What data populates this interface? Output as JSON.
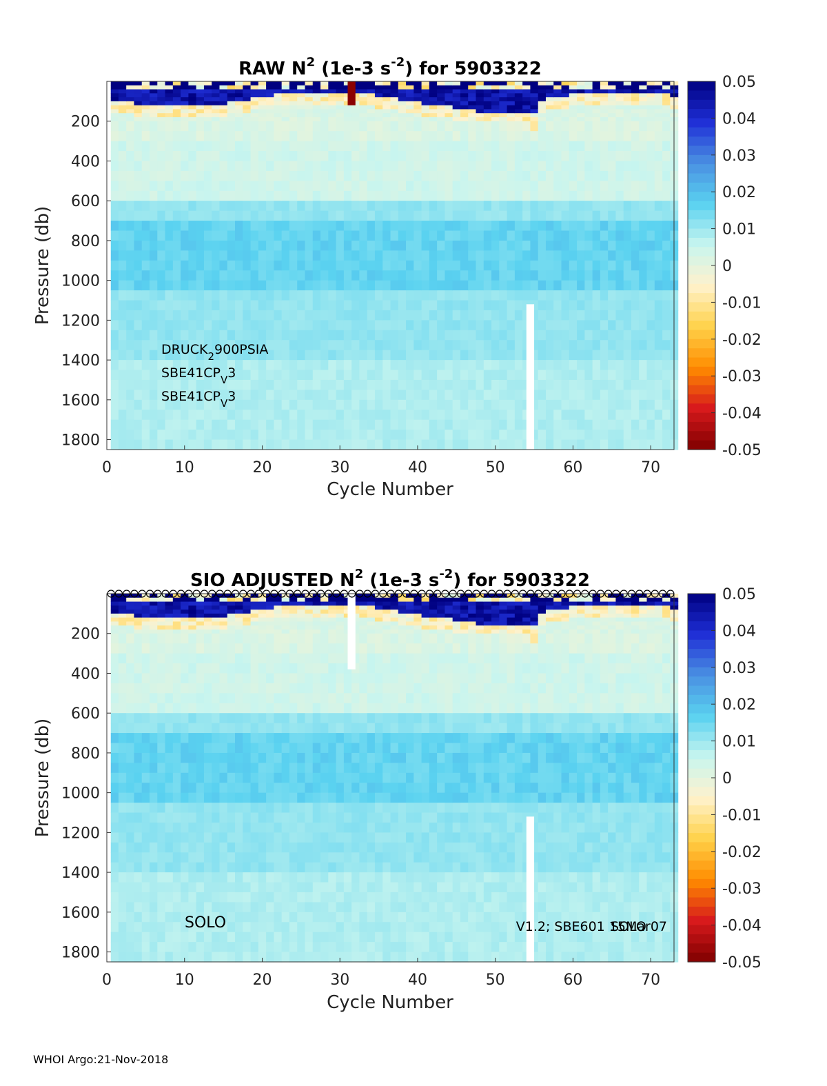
{
  "footer": "WHOI Argo:21-Nov-2018",
  "colormap": {
    "stops": [
      "#7f0000",
      "#d7191c",
      "#ff8c00",
      "#ffd24a",
      "#fff2cc",
      "#c8f5ef",
      "#5ad2f0",
      "#4a90e2",
      "#1f2fd6",
      "#000080"
    ],
    "range": [
      -0.05,
      0.05
    ]
  },
  "chart_data": [
    {
      "type": "heatmap",
      "title": {
        "pre": "RAW N",
        "sup1": "2",
        "mid": " (1e-3 s",
        "sup2": "-2",
        "post": ") for 5903322"
      },
      "xlabel": "Cycle Number",
      "ylabel": "Pressure (db)",
      "xlim": [
        0,
        73
      ],
      "ylim": [
        1850,
        0
      ],
      "xticks": [
        "0",
        "10",
        "20",
        "30",
        "40",
        "50",
        "60",
        "70"
      ],
      "yticks": [
        "200",
        "400",
        "600",
        "800",
        "1000",
        "1200",
        "1400",
        "1600",
        "1800"
      ],
      "colorbar_ticks": [
        "0.05",
        "0.04",
        "0.03",
        "0.02",
        "0.01",
        "0",
        "-0.01",
        "-0.02",
        "-0.03",
        "-0.04",
        "-0.05"
      ],
      "annotations": {
        "sensor1": {
          "base": "DRUCK",
          "sub": "2",
          "rest": "900PSIA"
        },
        "sensor2": {
          "base": "SBE41CP",
          "sub": "V",
          "rest": "3"
        },
        "sensor3": {
          "base": "SBE41CP",
          "sub": "V",
          "rest": "3"
        }
      },
      "gaps": [
        {
          "cycle": 54.5,
          "from_db": 1120,
          "to_db": 1850
        }
      ],
      "bad_profile": {
        "cycle": 31.5,
        "to_db": 120
      }
    },
    {
      "type": "heatmap",
      "title": {
        "pre": "SIO  ADJUSTED N",
        "sup1": "2",
        "mid": " (1e-3 s",
        "sup2": "-2",
        "post": ") for 5903322"
      },
      "xlabel": "Cycle Number",
      "ylabel": "Pressure (db)",
      "xlim": [
        0,
        73
      ],
      "ylim": [
        1850,
        0
      ],
      "xticks": [
        "0",
        "10",
        "20",
        "30",
        "40",
        "50",
        "60",
        "70"
      ],
      "yticks": [
        "200",
        "400",
        "600",
        "800",
        "1000",
        "1200",
        "1400",
        "1600",
        "1800"
      ],
      "colorbar_ticks": [
        "0.05",
        "0.04",
        "0.03",
        "0.02",
        "0.01",
        "0",
        "-0.01",
        "-0.02",
        "-0.03",
        "-0.04",
        "-0.05"
      ],
      "annotations": {
        "float_type": "SOLO",
        "firmware": "V1.2; SBE601 15Mar07",
        "firmware_overlap": "SOLO"
      },
      "gaps": [
        {
          "cycle": 31.5,
          "from_db": 0,
          "to_db": 380
        },
        {
          "cycle": 54.5,
          "from_db": 1120,
          "to_db": 1850
        }
      ],
      "markers": "circle",
      "marker_count": 73
    }
  ]
}
